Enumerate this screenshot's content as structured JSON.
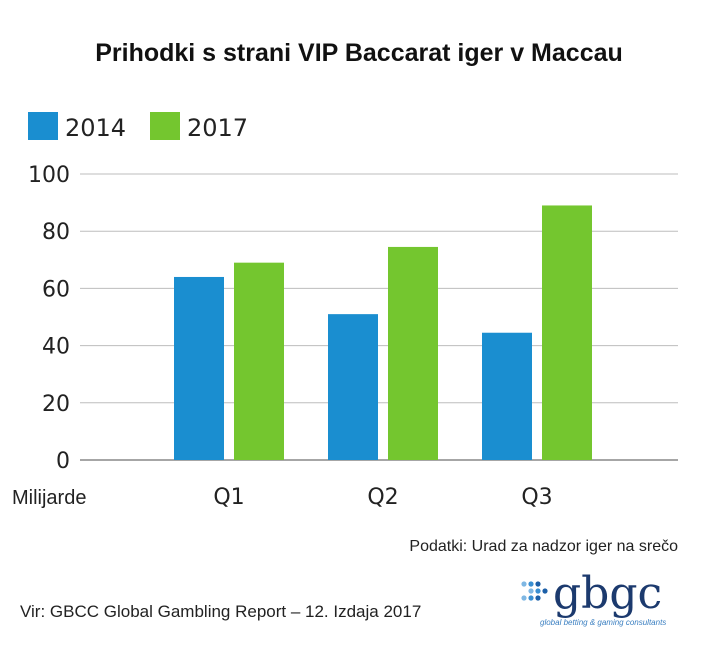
{
  "chart_data": {
    "type": "bar",
    "title": "Prihodki s strani VIP Baccarat iger v Maccau",
    "categories": [
      "Q1",
      "Q2",
      "Q3"
    ],
    "series": [
      {
        "name": "2014",
        "values": [
          64,
          51,
          44.5
        ],
        "color": "#1a8ed0"
      },
      {
        "name": "2017",
        "values": [
          69,
          74.5,
          89
        ],
        "color": "#74c62f"
      }
    ],
    "ylim": [
      0,
      100
    ],
    "yticks": [
      "0",
      "20",
      "40",
      "60",
      "80",
      "100"
    ],
    "ylabel": "Milijarde",
    "legend_position": "top-left",
    "grid": true
  },
  "footer": {
    "data_source": "Podatki: Urad za nadzor iger na srečo",
    "source": "Vir: GBCC Global Gambling Report – 12. Izdaja 2017"
  },
  "logo": {
    "name": "gbgc",
    "tagline": "global betting & gaming consultants"
  }
}
